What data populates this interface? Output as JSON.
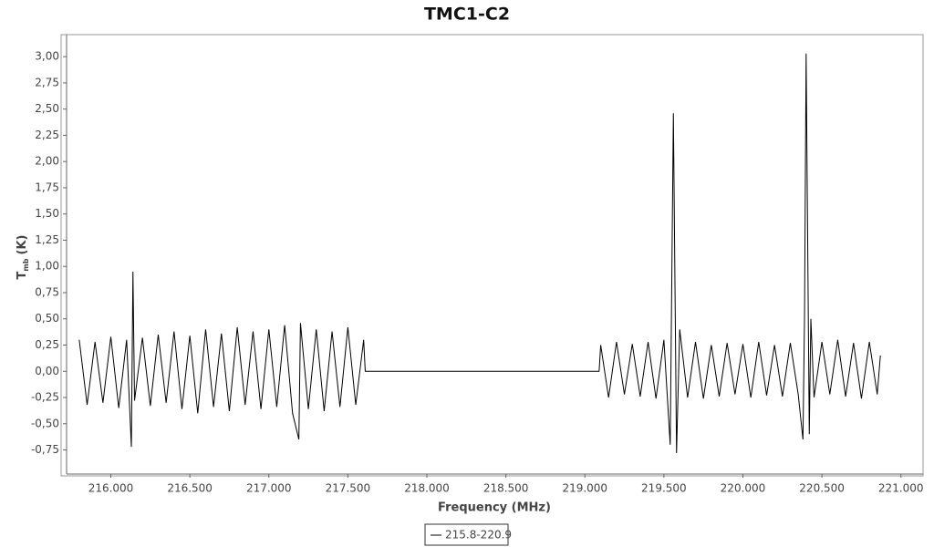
{
  "chart_data": {
    "type": "line",
    "title": "TMC1-C2",
    "x_label": "Frequency (MHz)",
    "y_label": "T",
    "y_label_sub": "mb",
    "y_label_unit": "(K)",
    "x": [
      215.8,
      215.85,
      215.9,
      215.95,
      216.0,
      216.05,
      216.1,
      216.13,
      216.14,
      216.15,
      216.2,
      216.25,
      216.3,
      216.35,
      216.4,
      216.45,
      216.5,
      216.55,
      216.6,
      216.65,
      216.7,
      216.75,
      216.8,
      216.85,
      216.9,
      216.95,
      217.0,
      217.05,
      217.1,
      217.15,
      217.19,
      217.2,
      217.25,
      217.3,
      217.35,
      217.4,
      217.45,
      217.5,
      217.55,
      217.6,
      217.61,
      219.09,
      219.1,
      219.15,
      219.2,
      219.25,
      219.3,
      219.35,
      219.4,
      219.45,
      219.5,
      219.54,
      219.56,
      219.58,
      219.6,
      219.65,
      219.7,
      219.75,
      219.8,
      219.85,
      219.9,
      219.95,
      220.0,
      220.05,
      220.1,
      220.15,
      220.2,
      220.25,
      220.3,
      220.35,
      220.38,
      220.39,
      220.4,
      220.42,
      220.43,
      220.45,
      220.5,
      220.55,
      220.6,
      220.65,
      220.7,
      220.75,
      220.8,
      220.85,
      220.87
    ],
    "series": [
      {
        "name": "215.8-220.9",
        "color": "#000000",
        "values": [
          0.3,
          -0.32,
          0.28,
          -0.3,
          0.33,
          -0.35,
          0.3,
          -0.72,
          0.95,
          -0.28,
          0.32,
          -0.33,
          0.35,
          -0.3,
          0.38,
          -0.36,
          0.34,
          -0.4,
          0.4,
          -0.34,
          0.36,
          -0.38,
          0.42,
          -0.32,
          0.38,
          -0.36,
          0.4,
          -0.34,
          0.44,
          -0.4,
          -0.65,
          0.46,
          -0.36,
          0.4,
          -0.38,
          0.38,
          -0.34,
          0.42,
          -0.32,
          0.3,
          0.0,
          0.0,
          0.25,
          -0.25,
          0.28,
          -0.22,
          0.26,
          -0.24,
          0.28,
          -0.26,
          0.3,
          -0.7,
          2.46,
          -0.78,
          0.4,
          -0.25,
          0.28,
          -0.26,
          0.25,
          -0.24,
          0.27,
          -0.22,
          0.26,
          -0.25,
          0.28,
          -0.23,
          0.25,
          -0.24,
          0.27,
          -0.22,
          -0.65,
          0.53,
          3.03,
          -0.6,
          0.5,
          -0.25,
          0.28,
          -0.22,
          0.3,
          -0.24,
          0.27,
          -0.26,
          0.28,
          -0.22,
          0.15
        ]
      }
    ],
    "xlim": [
      215.72,
      221.14
    ],
    "ylim": [
      -0.98,
      3.21
    ],
    "xticks": [
      {
        "value": 216,
        "label": "216.000"
      },
      {
        "value": 216.5,
        "label": "216.500"
      },
      {
        "value": 217,
        "label": "217.000"
      },
      {
        "value": 217.5,
        "label": "217.500"
      },
      {
        "value": 218,
        "label": "218.000"
      },
      {
        "value": 218.5,
        "label": "218.500"
      },
      {
        "value": 219,
        "label": "219.000"
      },
      {
        "value": 219.5,
        "label": "219.500"
      },
      {
        "value": 220,
        "label": "220.000"
      },
      {
        "value": 220.5,
        "label": "220.500"
      },
      {
        "value": 221,
        "label": "221.000"
      }
    ],
    "yticks": [
      {
        "value": -0.75,
        "label": "-0,75"
      },
      {
        "value": -0.5,
        "label": "-0,50"
      },
      {
        "value": -0.25,
        "label": "-0,25"
      },
      {
        "value": 0,
        "label": "0,00"
      },
      {
        "value": 0.25,
        "label": "0,25"
      },
      {
        "value": 0.5,
        "label": "0,50"
      },
      {
        "value": 0.75,
        "label": "0,75"
      },
      {
        "value": 1,
        "label": "1,00"
      },
      {
        "value": 1.25,
        "label": "1,25"
      },
      {
        "value": 1.5,
        "label": "1,50"
      },
      {
        "value": 1.75,
        "label": "1,75"
      },
      {
        "value": 2,
        "label": "2,00"
      },
      {
        "value": 2.25,
        "label": "2,25"
      },
      {
        "value": 2.5,
        "label": "2,50"
      },
      {
        "value": 2.75,
        "label": "2,75"
      },
      {
        "value": 3,
        "label": "3,00"
      }
    ],
    "grid": false,
    "legend": "bottom"
  }
}
